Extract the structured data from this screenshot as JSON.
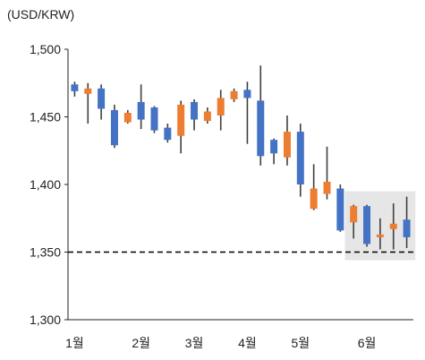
{
  "chart_data": {
    "type": "candlestick",
    "unit_label": "(USD/KRW)",
    "ylim": [
      1300,
      1500
    ],
    "yticks": [
      1300,
      1350,
      1400,
      1450,
      1500
    ],
    "ytick_labels": [
      "1,300",
      "1,350",
      "1,400",
      "1,450",
      "1,500"
    ],
    "xtick_labels": [
      {
        "label": "1월",
        "week": 0
      },
      {
        "label": "2월",
        "week": 5
      },
      {
        "label": "3월",
        "week": 9
      },
      {
        "label": "4월",
        "week": 13
      },
      {
        "label": "5월",
        "week": 17
      },
      {
        "label": "6월",
        "week": 22
      }
    ],
    "reference_line": 1350,
    "highlight_weeks": [
      21,
      25
    ],
    "colors": {
      "up": "#ED7D31",
      "down": "#4472C4",
      "wick": "#404040",
      "axis": "#222222",
      "highlight": "#E6E6E6"
    },
    "candles": [
      {
        "open": 1474,
        "high": 1476,
        "low": 1465,
        "close": 1469
      },
      {
        "open": 1467,
        "high": 1475,
        "low": 1445,
        "close": 1471
      },
      {
        "open": 1471,
        "high": 1474,
        "low": 1448,
        "close": 1456
      },
      {
        "open": 1455,
        "high": 1459,
        "low": 1427,
        "close": 1429
      },
      {
        "open": 1446,
        "high": 1455,
        "low": 1445,
        "close": 1453
      },
      {
        "open": 1461,
        "high": 1474,
        "low": 1441,
        "close": 1448
      },
      {
        "open": 1457,
        "high": 1458,
        "low": 1438,
        "close": 1440
      },
      {
        "open": 1442,
        "high": 1445,
        "low": 1431,
        "close": 1433
      },
      {
        "open": 1436,
        "high": 1462,
        "low": 1423,
        "close": 1459
      },
      {
        "open": 1461,
        "high": 1463,
        "low": 1440,
        "close": 1448
      },
      {
        "open": 1447,
        "high": 1457,
        "low": 1445,
        "close": 1454
      },
      {
        "open": 1451,
        "high": 1470,
        "low": 1440,
        "close": 1464
      },
      {
        "open": 1463,
        "high": 1471,
        "low": 1461,
        "close": 1469
      },
      {
        "open": 1470,
        "high": 1476,
        "low": 1430,
        "close": 1464
      },
      {
        "open": 1462,
        "high": 1488,
        "low": 1414,
        "close": 1421
      },
      {
        "open": 1433,
        "high": 1434,
        "low": 1415,
        "close": 1423
      },
      {
        "open": 1420,
        "high": 1451,
        "low": 1414,
        "close": 1439
      },
      {
        "open": 1439,
        "high": 1445,
        "low": 1391,
        "close": 1400
      },
      {
        "open": 1382,
        "high": 1415,
        "low": 1381,
        "close": 1397
      },
      {
        "open": 1393,
        "high": 1428,
        "low": 1389,
        "close": 1402
      },
      {
        "open": 1397,
        "high": 1400,
        "low": 1365,
        "close": 1366
      },
      {
        "open": 1372,
        "high": 1385,
        "low": 1360,
        "close": 1384
      },
      {
        "open": 1384,
        "high": 1385,
        "low": 1354,
        "close": 1356
      },
      {
        "open": 1361,
        "high": 1375,
        "low": 1352,
        "close": 1363
      },
      {
        "open": 1367,
        "high": 1386,
        "low": 1352,
        "close": 1371
      },
      {
        "open": 1374,
        "high": 1391,
        "low": 1353,
        "close": 1361
      }
    ]
  }
}
